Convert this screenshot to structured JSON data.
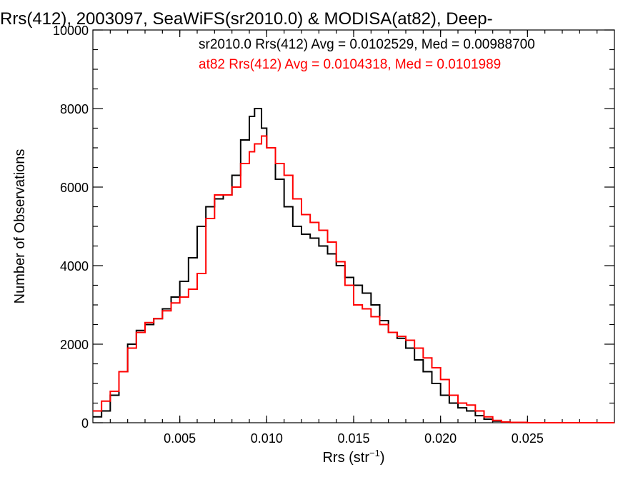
{
  "chart_data": {
    "type": "line",
    "title": "Rrs(412), 2003097, SeaWiFS(sr2010.0) & MODISA(at82), Deep-",
    "xlabel": "Rrs (str",
    "xlabel_sup": "−1",
    "xlabel_close": ")",
    "ylabel": "Number of Observations",
    "xlim": [
      0.0,
      0.03
    ],
    "ylim": [
      0,
      10000
    ],
    "x_ticks": [
      0.005,
      0.01,
      0.015,
      0.02,
      0.025
    ],
    "x_tick_labels": [
      "0.005",
      "0.010",
      "0.015",
      "0.020",
      "0.025"
    ],
    "y_ticks": [
      0,
      2000,
      4000,
      6000,
      8000,
      10000
    ],
    "y_tick_labels": [
      "0",
      "2000",
      "4000",
      "6000",
      "8000",
      "10000"
    ],
    "x": [
      0.0,
      0.0005,
      0.001,
      0.0015,
      0.002,
      0.0025,
      0.003,
      0.0035,
      0.004,
      0.0045,
      0.005,
      0.0055,
      0.006,
      0.0065,
      0.007,
      0.0075,
      0.008,
      0.0085,
      0.009,
      0.0093,
      0.0097,
      0.01,
      0.0105,
      0.011,
      0.0115,
      0.012,
      0.0125,
      0.013,
      0.0135,
      0.014,
      0.0145,
      0.015,
      0.0155,
      0.016,
      0.0165,
      0.017,
      0.0175,
      0.018,
      0.0185,
      0.019,
      0.0195,
      0.02,
      0.0205,
      0.021,
      0.0215,
      0.022,
      0.0225,
      0.023,
      0.0235,
      0.024,
      0.025,
      0.026,
      0.027,
      0.028,
      0.029,
      0.03
    ],
    "series": [
      {
        "name": "sr2010.0 Rrs(412) Avg = 0.0102529, Med = 0.00988700",
        "color": "#000000",
        "values": [
          150,
          300,
          700,
          1300,
          2000,
          2350,
          2500,
          2650,
          2900,
          3200,
          3600,
          4200,
          5000,
          5500,
          5700,
          5800,
          6300,
          7200,
          7800,
          8000,
          7500,
          7000,
          6200,
          5500,
          5000,
          4800,
          4700,
          4500,
          4300,
          4000,
          3700,
          3500,
          3300,
          3000,
          2600,
          2300,
          2150,
          1900,
          1600,
          1300,
          1000,
          700,
          500,
          380,
          300,
          180,
          90,
          40,
          15,
          5,
          0,
          0,
          0,
          0,
          0,
          0
        ]
      },
      {
        "name": "at82 Rrs(412) Avg = 0.0104318, Med = 0.0101989",
        "color": "#ff0000",
        "values": [
          300,
          550,
          800,
          1300,
          1900,
          2300,
          2550,
          2650,
          2850,
          3050,
          3200,
          3400,
          3800,
          5200,
          5800,
          5800,
          6000,
          6600,
          6900,
          7100,
          7300,
          7000,
          6600,
          6300,
          5700,
          5300,
          5100,
          4900,
          4600,
          4100,
          3500,
          3000,
          2900,
          2700,
          2500,
          2300,
          2200,
          2100,
          1900,
          1650,
          1400,
          1100,
          700,
          500,
          450,
          300,
          150,
          60,
          20,
          10,
          0,
          0,
          0,
          0,
          0,
          0
        ]
      }
    ],
    "grid": false,
    "legend_position": "top-right"
  }
}
